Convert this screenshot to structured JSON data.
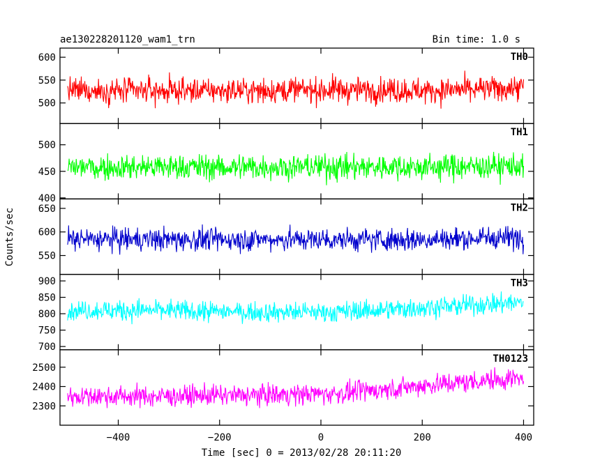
{
  "header": {
    "obs_title": "ae130228201120_wam1_trn",
    "bin_time": "Bin time: 1.0 s"
  },
  "chart_data": {
    "type": "line",
    "xlabel": "Time [sec] 0 = 2013/02/28 20:11:20",
    "ylabel": "Counts/sec",
    "xlim": [
      -515,
      420
    ],
    "xticks": [
      -400,
      -200,
      0,
      200,
      400
    ],
    "x_start": -500,
    "x_end": 400,
    "bin_seconds": 1.0,
    "panels": [
      {
        "name": "TH0",
        "color": "#ff0000",
        "ylim": [
          455,
          620
        ],
        "yticks": [
          500,
          550,
          600
        ],
        "mean": 527,
        "amplitude": 28,
        "spread": 14,
        "trend": [
          0,
          0,
          0,
          2,
          0,
          6
        ]
      },
      {
        "name": "TH1",
        "color": "#00ff00",
        "ylim": [
          398,
          540
        ],
        "yticks": [
          400,
          450,
          500
        ],
        "mean": 458,
        "amplitude": 25,
        "spread": 12,
        "trend": [
          0,
          0,
          0,
          0,
          0,
          2
        ]
      },
      {
        "name": "TH2",
        "color": "#0000cc",
        "ylim": [
          510,
          670
        ],
        "yticks": [
          550,
          600,
          650
        ],
        "mean": 584,
        "amplitude": 25,
        "spread": 12,
        "trend": [
          0,
          0,
          0,
          0,
          0,
          5
        ]
      },
      {
        "name": "TH3",
        "color": "#00ffff",
        "ylim": [
          690,
          920
        ],
        "yticks": [
          700,
          750,
          800,
          850,
          900
        ],
        "mean": 810,
        "amplitude": 32,
        "spread": 16,
        "trend": [
          0,
          0,
          -5,
          -5,
          10,
          25
        ]
      },
      {
        "name": "TH0123",
        "color": "#ff00ff",
        "ylim": [
          2200,
          2590
        ],
        "yticks": [
          2300,
          2400,
          2500
        ],
        "mean": 2350,
        "amplitude": 55,
        "spread": 28,
        "trend": [
          0,
          0,
          5,
          15,
          60,
          95
        ]
      }
    ]
  }
}
